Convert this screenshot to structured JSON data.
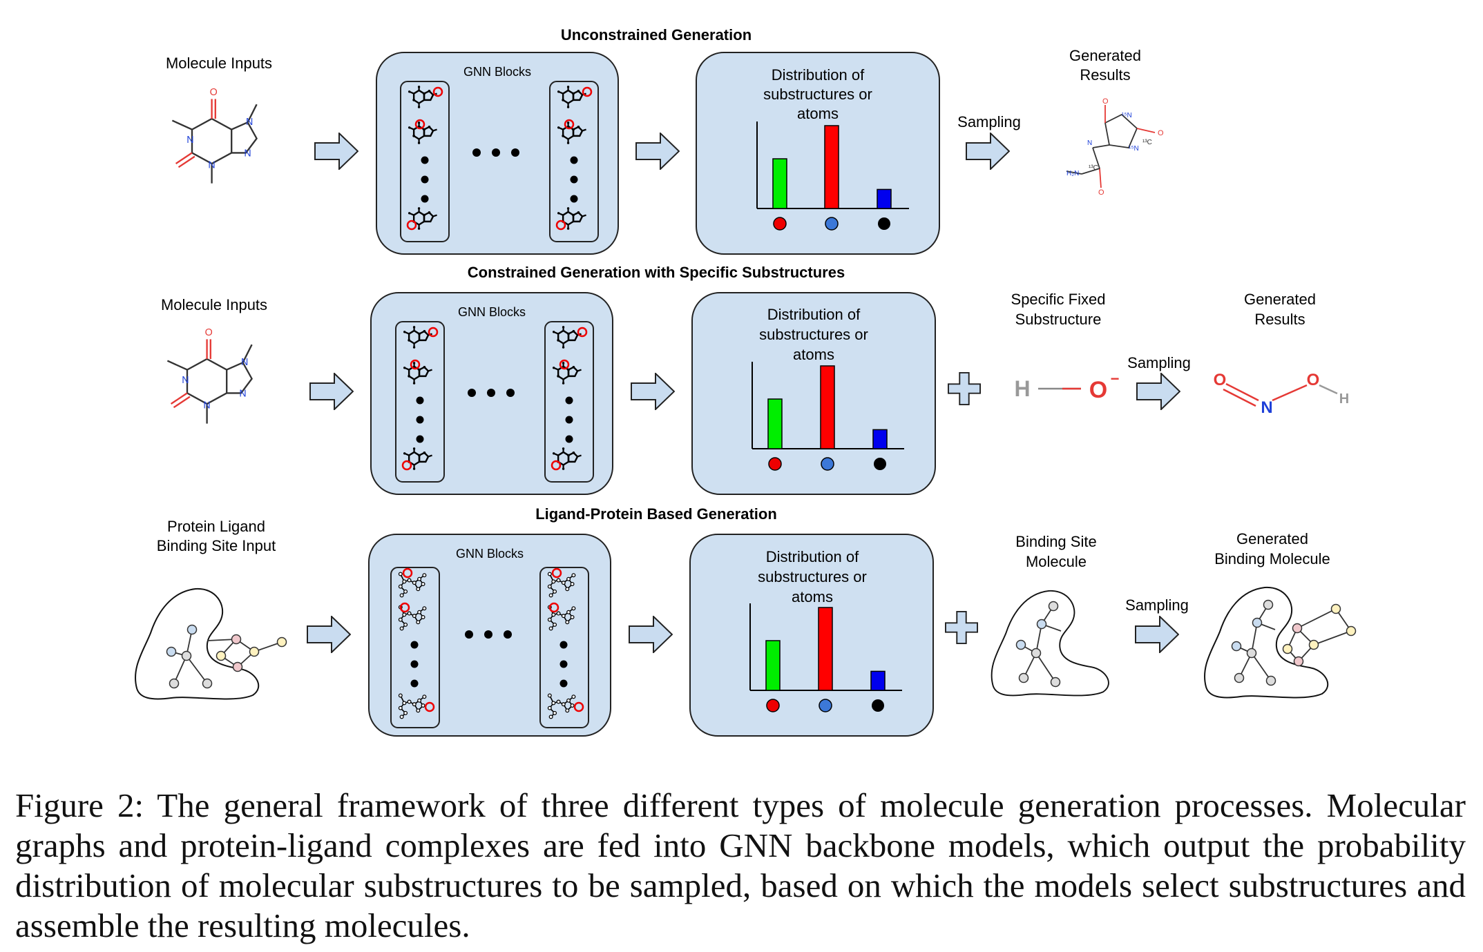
{
  "colors": {
    "panel_fill": "#cfe0f1",
    "arrow_fill": "#c9dcf0",
    "bar_green": "#00ee00",
    "bar_red": "#ff0000",
    "bar_blue": "#0000ee",
    "dot_red": "#ee0000",
    "dot_blue": "#3c78d8",
    "dot_black": "#000000"
  },
  "rows": [
    {
      "title": "Unconstrained Generation",
      "input_label_lines": [
        "Molecule Inputs"
      ],
      "gnn_label": "GNN Blocks",
      "dist_label_lines": [
        "Distribution of",
        "substructures or",
        "atoms"
      ],
      "sampling_label": "Sampling",
      "result_label_lines": [
        "Generated",
        "Results"
      ]
    },
    {
      "title": "Constrained Generation with Specific Substructures",
      "input_label_lines": [
        "Molecule Inputs"
      ],
      "gnn_label": "GNN Blocks",
      "dist_label_lines": [
        "Distribution of",
        "substructures or",
        "atoms"
      ],
      "fixed_label_lines": [
        "Specific Fixed",
        "Substructure"
      ],
      "sampling_label": "Sampling",
      "result_label_lines": [
        "Generated",
        "Results"
      ]
    },
    {
      "title": "Ligand-Protein Based Generation",
      "input_label_lines": [
        "Protein Ligand",
        "Binding Site Input"
      ],
      "gnn_label": "GNN Blocks",
      "dist_label_lines": [
        "Distribution of",
        "substructures or",
        "atoms"
      ],
      "fixed_label_lines": [
        "Binding Site",
        "Molecule"
      ],
      "sampling_label": "Sampling",
      "result_label_lines": [
        "Generated",
        "Binding Molecule"
      ]
    }
  ],
  "distribution_values": [
    0.6,
    1.0,
    0.23
  ],
  "hydroxide": {
    "h": "H",
    "o": "O",
    "charge": "−"
  },
  "nitrous_acid": {
    "o1": "O",
    "n": "N",
    "o2": "O",
    "h": "H"
  },
  "caption": "Figure 2:  The general framework of three different types of molecule generation processes.  Molecular graphs and protein-ligand complexes are fed into GNN backbone models, which output the probability distribution of molecular substructures to be sampled, based on which the models select substructures and assemble the resulting molecules."
}
